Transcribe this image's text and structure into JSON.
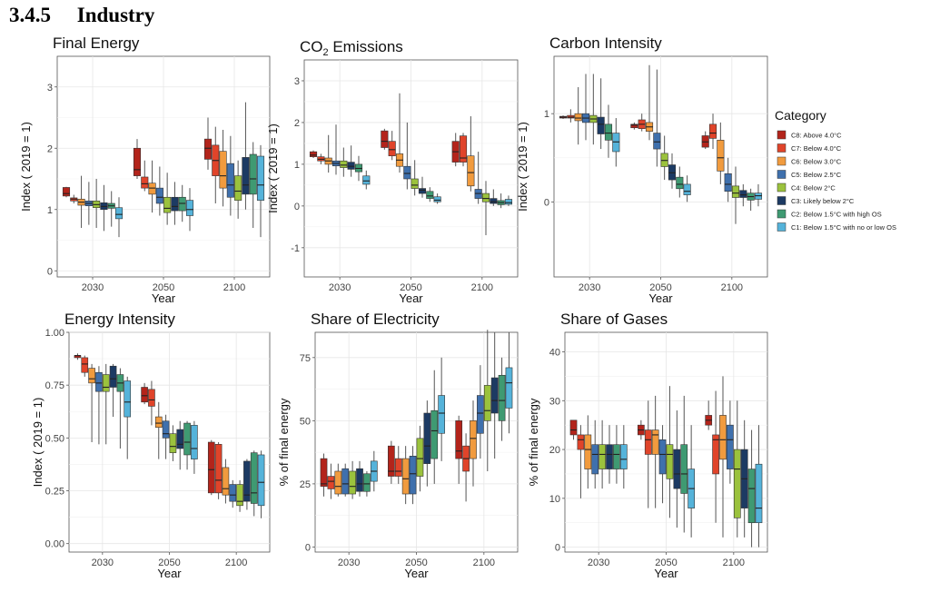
{
  "section_heading": "3.4.5     Industry",
  "legend": {
    "title": "Category",
    "items": [
      {
        "label": "C8: Above 4.0°C",
        "color": "#b3241b"
      },
      {
        "label": "C7: Below 4.0°C",
        "color": "#e0442a"
      },
      {
        "label": "C6: Below 3.0°C",
        "color": "#f19b3e"
      },
      {
        "label": "C5: Below 2.5°C",
        "color": "#3f70ad"
      },
      {
        "label": "C4: Below 2°C",
        "color": "#9bc23d"
      },
      {
        "label": "C3: Likely below 2°C",
        "color": "#1c3a63"
      },
      {
        "label": "C2: Below 1.5°C with high OS",
        "color": "#3f9a72"
      },
      {
        "label": "C1: Below 1.5°C with no or low OS",
        "color": "#55b3da"
      }
    ]
  },
  "chart_data": [
    {
      "type": "box",
      "title": "Final Energy",
      "title_sub": "",
      "xlabel": "Year",
      "ylabel": "Index ( 2019 = 1)",
      "categories": [
        "2030",
        "2050",
        "2100"
      ],
      "ylim": [
        -0.1,
        3.5
      ],
      "yticks": [
        0,
        1,
        2,
        3
      ],
      "ytick_labels": [
        "0",
        "1",
        "2",
        "3"
      ],
      "boxes": [
        [
          [
            1.2,
            1.22,
            1.26,
            1.36,
            1.37
          ],
          [
            1.1,
            1.14,
            1.17,
            1.19,
            1.24
          ],
          [
            0.7,
            1.07,
            1.12,
            1.17,
            1.55
          ],
          [
            0.75,
            1.06,
            1.1,
            1.14,
            1.45
          ],
          [
            0.7,
            1.03,
            1.08,
            1.14,
            1.5
          ],
          [
            0.65,
            1.0,
            1.05,
            1.11,
            1.4
          ],
          [
            0.72,
            1.02,
            1.06,
            1.1,
            1.3
          ],
          [
            0.55,
            0.85,
            0.92,
            1.03,
            1.2
          ]
        ],
        [
          [
            1.5,
            1.55,
            1.65,
            2.0,
            2.15
          ],
          [
            1.3,
            1.35,
            1.42,
            1.53,
            1.8
          ],
          [
            0.95,
            1.25,
            1.35,
            1.43,
            1.8
          ],
          [
            0.9,
            1.1,
            1.2,
            1.35,
            1.7
          ],
          [
            0.75,
            0.95,
            1.02,
            1.2,
            1.6
          ],
          [
            0.75,
            0.98,
            1.05,
            1.2,
            1.45
          ],
          [
            0.8,
            0.98,
            1.1,
            1.2,
            1.4
          ],
          [
            0.65,
            0.9,
            1.0,
            1.15,
            1.35
          ]
        ],
        [
          [
            1.65,
            1.82,
            2.0,
            2.15,
            2.5
          ],
          [
            1.1,
            1.55,
            1.8,
            2.05,
            2.35
          ],
          [
            1.05,
            1.35,
            1.55,
            1.95,
            2.3
          ],
          [
            0.9,
            1.2,
            1.4,
            1.75,
            2.2
          ],
          [
            0.85,
            1.15,
            1.3,
            1.55,
            1.8
          ],
          [
            1.0,
            1.25,
            1.4,
            1.85,
            2.75
          ],
          [
            0.7,
            1.25,
            1.5,
            1.9,
            2.1
          ],
          [
            0.55,
            1.15,
            1.4,
            1.87,
            2.05
          ]
        ]
      ]
    },
    {
      "type": "box",
      "title": "CO",
      "title_sub": "2",
      "title_rest": " Emissions",
      "xlabel": "Year",
      "ylabel": "Index ( 2019 = 1)",
      "categories": [
        "2030",
        "2050",
        "2100"
      ],
      "ylim": [
        -1.7,
        3.5
      ],
      "yticks": [
        -1,
        0,
        1,
        2,
        3
      ],
      "ytick_labels": [
        "-1",
        "0",
        "1",
        "2",
        "3"
      ],
      "boxes": [
        [
          [
            1.15,
            1.18,
            1.22,
            1.3,
            1.33
          ],
          [
            1.0,
            1.08,
            1.12,
            1.18,
            1.25
          ],
          [
            0.8,
            1.0,
            1.08,
            1.15,
            1.7
          ],
          [
            0.75,
            0.96,
            1.02,
            1.08,
            1.95
          ],
          [
            0.7,
            0.92,
            0.98,
            1.08,
            1.4
          ],
          [
            0.7,
            0.88,
            0.95,
            1.05,
            1.45
          ],
          [
            0.6,
            0.82,
            0.9,
            1.0,
            1.2
          ],
          [
            0.4,
            0.52,
            0.6,
            0.72,
            0.85
          ]
        ],
        [
          [
            1.35,
            1.4,
            1.55,
            1.8,
            1.85
          ],
          [
            1.1,
            1.2,
            1.35,
            1.55,
            1.8
          ],
          [
            0.8,
            0.95,
            1.1,
            1.25,
            2.7
          ],
          [
            0.4,
            0.65,
            0.78,
            0.95,
            2.0
          ],
          [
            0.25,
            0.42,
            0.5,
            0.65,
            1.1
          ],
          [
            0.2,
            0.3,
            0.38,
            0.42,
            0.7
          ],
          [
            0.1,
            0.18,
            0.24,
            0.35,
            0.45
          ],
          [
            0.05,
            0.1,
            0.14,
            0.22,
            0.3
          ]
        ],
        [
          [
            0.95,
            1.05,
            1.3,
            1.55,
            1.75
          ],
          [
            0.95,
            1.05,
            1.15,
            1.68,
            1.75
          ],
          [
            0.35,
            0.48,
            0.8,
            1.2,
            2.15
          ],
          [
            0.05,
            0.18,
            0.3,
            0.4,
            1.3
          ],
          [
            -0.7,
            0.1,
            0.18,
            0.3,
            0.6
          ],
          [
            0.0,
            0.06,
            0.1,
            0.18,
            0.4
          ],
          [
            -0.05,
            0.03,
            0.08,
            0.13,
            0.3
          ],
          [
            0.0,
            0.04,
            0.08,
            0.16,
            0.25
          ]
        ]
      ]
    },
    {
      "type": "box",
      "title": "Carbon Intensity",
      "title_sub": "",
      "xlabel": "Year",
      "ylabel": "Index ( 2019 = 1)",
      "categories": [
        "2030",
        "2050",
        "2100"
      ],
      "ylim": [
        -0.85,
        1.65
      ],
      "yticks": [
        0,
        1
      ],
      "ytick_labels": [
        "0",
        "1"
      ],
      "boxes": [
        [
          [
            0.94,
            0.95,
            0.96,
            0.97,
            0.98
          ],
          [
            0.9,
            0.95,
            0.96,
            0.98,
            1.05
          ],
          [
            0.65,
            0.92,
            0.95,
            1.0,
            1.3
          ],
          [
            0.7,
            0.9,
            0.95,
            1.0,
            1.45
          ],
          [
            0.65,
            0.9,
            0.94,
            0.98,
            1.45
          ],
          [
            0.6,
            0.77,
            0.88,
            0.96,
            1.4
          ],
          [
            0.5,
            0.7,
            0.78,
            0.88,
            1.1
          ],
          [
            0.4,
            0.57,
            0.68,
            0.78,
            0.95
          ]
        ],
        [
          [
            0.82,
            0.84,
            0.87,
            0.88,
            0.9
          ],
          [
            0.8,
            0.83,
            0.88,
            0.93,
            1.0
          ],
          [
            0.7,
            0.8,
            0.85,
            0.9,
            1.55
          ],
          [
            0.4,
            0.6,
            0.68,
            0.78,
            1.5
          ],
          [
            0.25,
            0.4,
            0.47,
            0.55,
            0.75
          ],
          [
            0.15,
            0.25,
            0.33,
            0.42,
            0.55
          ],
          [
            0.05,
            0.15,
            0.2,
            0.28,
            0.4
          ],
          [
            0.0,
            0.08,
            0.12,
            0.2,
            0.3
          ]
        ],
        [
          [
            0.6,
            0.62,
            0.68,
            0.75,
            0.8
          ],
          [
            0.6,
            0.72,
            0.78,
            0.88,
            1.0
          ],
          [
            0.2,
            0.35,
            0.5,
            0.7,
            0.9
          ],
          [
            0.0,
            0.12,
            0.2,
            0.32,
            0.5
          ],
          [
            -0.25,
            0.05,
            0.1,
            0.18,
            0.4
          ],
          [
            -0.05,
            0.05,
            0.08,
            0.13,
            0.2
          ],
          [
            -0.1,
            0.02,
            0.06,
            0.1,
            0.15
          ],
          [
            -0.05,
            0.03,
            0.07,
            0.1,
            0.2
          ]
        ]
      ]
    },
    {
      "type": "box",
      "title": "Energy Intensity",
      "title_sub": "",
      "xlabel": "Year",
      "ylabel": "Index ( 2019 = 1)",
      "categories": [
        "2030",
        "2050",
        "2100"
      ],
      "ylim": [
        -0.04,
        1.0
      ],
      "yticks": [
        0,
        0.25,
        0.5,
        0.75,
        1.0
      ],
      "ytick_labels": [
        "0.00",
        "0.25",
        "0.50",
        "0.75",
        "1.00"
      ],
      "boxes": [
        [
          [
            0.87,
            0.88,
            0.89,
            0.89,
            0.9
          ],
          [
            0.79,
            0.81,
            0.85,
            0.88,
            0.89
          ],
          [
            0.48,
            0.76,
            0.78,
            0.83,
            0.85
          ],
          [
            0.47,
            0.72,
            0.76,
            0.81,
            0.84
          ],
          [
            0.47,
            0.72,
            0.74,
            0.8,
            0.85
          ],
          [
            0.6,
            0.74,
            0.78,
            0.84,
            0.85
          ],
          [
            0.45,
            0.72,
            0.76,
            0.8,
            0.83
          ],
          [
            0.4,
            0.6,
            0.67,
            0.77,
            0.79
          ]
        ],
        [
          [
            0.66,
            0.67,
            0.7,
            0.74,
            0.76
          ],
          [
            0.56,
            0.65,
            0.68,
            0.73,
            0.77
          ],
          [
            0.4,
            0.55,
            0.57,
            0.6,
            0.67
          ],
          [
            0.4,
            0.5,
            0.52,
            0.58,
            0.61
          ],
          [
            0.39,
            0.43,
            0.46,
            0.52,
            0.56
          ],
          [
            0.35,
            0.45,
            0.47,
            0.54,
            0.58
          ],
          [
            0.35,
            0.42,
            0.48,
            0.57,
            0.58
          ],
          [
            0.33,
            0.4,
            0.45,
            0.56,
            0.58
          ]
        ],
        [
          [
            0.23,
            0.24,
            0.35,
            0.48,
            0.49
          ],
          [
            0.21,
            0.24,
            0.3,
            0.47,
            0.48
          ],
          [
            0.19,
            0.23,
            0.26,
            0.36,
            0.4
          ],
          [
            0.17,
            0.2,
            0.23,
            0.28,
            0.3
          ],
          [
            0.15,
            0.18,
            0.2,
            0.28,
            0.3
          ],
          [
            0.16,
            0.2,
            0.23,
            0.39,
            0.4
          ],
          [
            0.13,
            0.19,
            0.24,
            0.43,
            0.44
          ],
          [
            0.12,
            0.18,
            0.29,
            0.42,
            0.44
          ]
        ]
      ]
    },
    {
      "type": "box",
      "title": "Share of Electricity",
      "title_sub": "",
      "xlabel": "Year",
      "ylabel": "% of final energy",
      "categories": [
        "2030",
        "2050",
        "2100"
      ],
      "ylim": [
        -2,
        85
      ],
      "yticks": [
        0,
        25,
        50,
        75
      ],
      "ytick_labels": [
        "0",
        "25",
        "50",
        "75"
      ],
      "boxes": [
        [
          [
            20,
            24,
            25,
            35,
            37
          ],
          [
            19,
            23,
            26,
            28,
            33
          ],
          [
            20,
            21,
            24,
            30,
            33
          ],
          [
            20,
            21,
            25,
            31,
            33
          ],
          [
            19,
            21,
            24,
            30,
            34
          ],
          [
            20,
            22,
            25,
            31,
            34
          ],
          [
            20,
            22,
            25,
            29,
            30
          ],
          [
            22,
            26,
            30,
            34,
            38
          ]
        ],
        [
          [
            25,
            28,
            30,
            40,
            42
          ],
          [
            25,
            28,
            30,
            35,
            40
          ],
          [
            17,
            21,
            27,
            35,
            40
          ],
          [
            17,
            21,
            29,
            36,
            40
          ],
          [
            22,
            28,
            35,
            43,
            48
          ],
          [
            24,
            33,
            40,
            53,
            58
          ],
          [
            25,
            35,
            46,
            54,
            70
          ],
          [
            34,
            45,
            53,
            60,
            75
          ]
        ],
        [
          [
            25,
            35,
            38,
            50,
            52
          ],
          [
            18,
            30,
            35,
            40,
            45
          ],
          [
            24,
            35,
            43,
            50,
            58
          ],
          [
            35,
            45,
            53,
            60,
            72
          ],
          [
            30,
            50,
            54,
            64,
            86
          ],
          [
            35,
            53,
            58,
            67,
            85
          ],
          [
            42,
            50,
            58,
            68,
            75
          ],
          [
            45,
            55,
            65,
            71,
            85
          ]
        ]
      ]
    },
    {
      "type": "box",
      "title": "Share of Gases",
      "title_sub": "",
      "xlabel": "Year",
      "ylabel": "% of final energy",
      "categories": [
        "2030",
        "2050",
        "2100"
      ],
      "ylim": [
        -1,
        44
      ],
      "yticks": [
        0,
        10,
        20,
        30,
        40
      ],
      "ytick_labels": [
        "0",
        "10",
        "20",
        "30",
        "40"
      ],
      "boxes": [
        [
          [
            22,
            23,
            24,
            26,
            26
          ],
          [
            10,
            20,
            22,
            23,
            25
          ],
          [
            12,
            16,
            20,
            23,
            27
          ],
          [
            12,
            15,
            19,
            21,
            26
          ],
          [
            12,
            16,
            19,
            21,
            26
          ],
          [
            13,
            16,
            19,
            21,
            25
          ],
          [
            13,
            16,
            19,
            21,
            25
          ],
          [
            12,
            16,
            18,
            21,
            25
          ]
        ],
        [
          [
            22,
            23,
            24,
            25,
            26
          ],
          [
            8,
            19,
            22,
            24,
            30
          ],
          [
            8,
            19,
            23,
            24,
            31
          ],
          [
            9,
            15,
            19,
            22,
            25
          ],
          [
            6,
            14,
            19,
            21,
            33
          ],
          [
            4,
            12,
            15,
            20,
            28
          ],
          [
            3,
            11,
            15,
            21,
            31
          ],
          [
            2,
            8,
            12,
            16,
            25
          ]
        ],
        [
          [
            24,
            25,
            26,
            27,
            30
          ],
          [
            5,
            15,
            22,
            23,
            32
          ],
          [
            2,
            18,
            22,
            27,
            35
          ],
          [
            13,
            16,
            22,
            25,
            30
          ],
          [
            2,
            6,
            16,
            20,
            30
          ],
          [
            2,
            8,
            14,
            20,
            26
          ],
          [
            0,
            5,
            12,
            16,
            24
          ],
          [
            0,
            5,
            8,
            17,
            25
          ]
        ]
      ]
    }
  ]
}
